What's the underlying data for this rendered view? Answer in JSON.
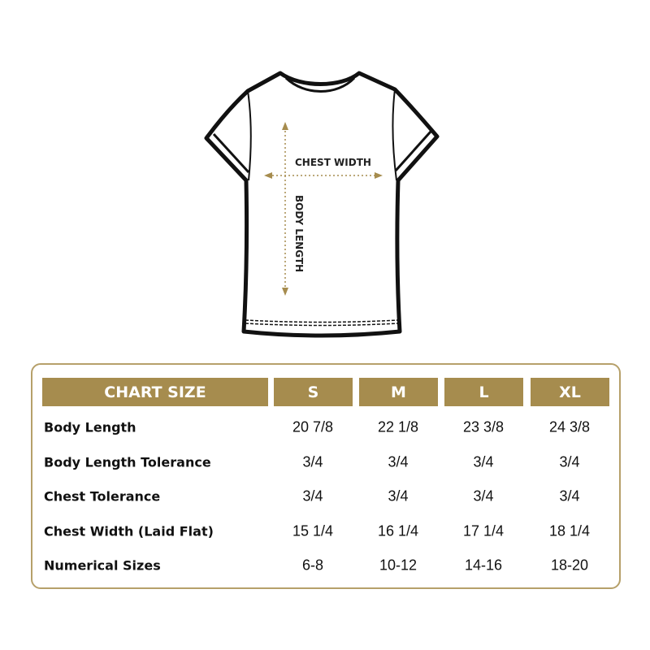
{
  "illustration": {
    "chest_label": "CHEST WIDTH",
    "length_label": "BODY LENGTH"
  },
  "colors": {
    "accent": "#a68c4e",
    "border": "#b6a06a"
  },
  "table": {
    "header": "CHART SIZE",
    "sizes": [
      "S",
      "M",
      "L",
      "XL"
    ],
    "rows": [
      {
        "label": "Body Length",
        "values": [
          "20 7/8",
          "22 1/8",
          "23 3/8",
          "24 3/8"
        ]
      },
      {
        "label": "Body Length Tolerance",
        "values": [
          "3/4",
          "3/4",
          "3/4",
          "3/4"
        ]
      },
      {
        "label": "Chest Tolerance",
        "values": [
          "3/4",
          "3/4",
          "3/4",
          "3/4"
        ]
      },
      {
        "label": "Chest Width (Laid Flat)",
        "values": [
          "15 1/4",
          "16 1/4",
          "17 1/4",
          "18 1/4"
        ]
      },
      {
        "label": "Numerical Sizes",
        "values": [
          "6-8",
          "10-12",
          "14-16",
          "18-20"
        ]
      }
    ]
  }
}
